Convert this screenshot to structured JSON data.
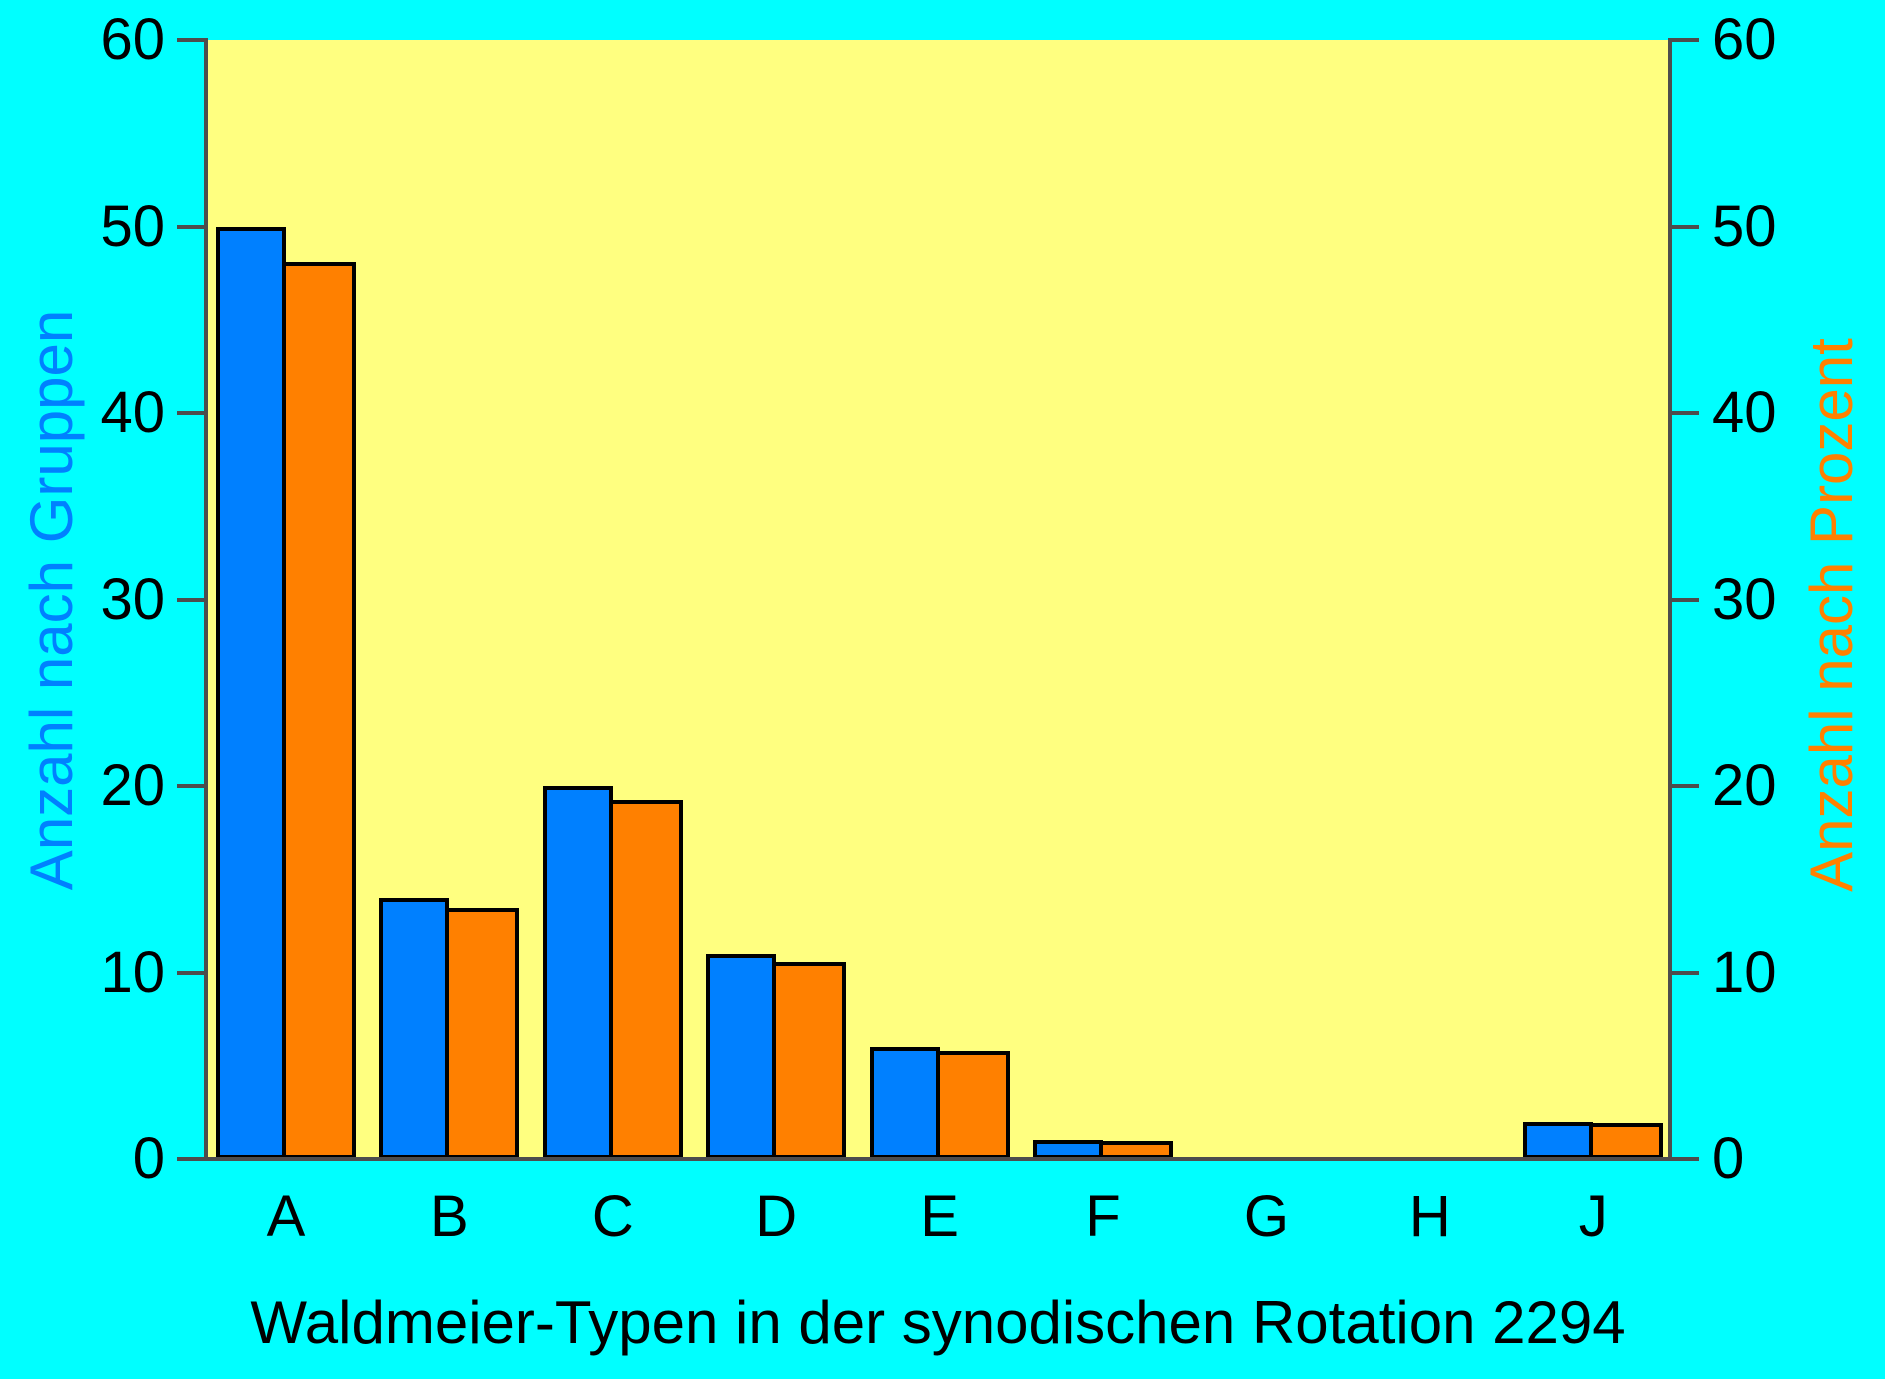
{
  "chart_data": {
    "type": "bar",
    "title": "Waldmeier-Typen in der synodischen Rotation 2294",
    "categories": [
      "A",
      "B",
      "C",
      "D",
      "E",
      "F",
      "G",
      "H",
      "J"
    ],
    "series": [
      {
        "name": "Anzahl nach Gruppen",
        "axis": "left",
        "color": "#0080ff",
        "values": [
          50,
          14,
          20,
          11,
          6,
          1,
          0,
          0,
          2
        ]
      },
      {
        "name": "Anzahl nach Prozent",
        "axis": "right",
        "color": "#ff8000",
        "values": [
          48.08,
          13.46,
          19.23,
          10.58,
          5.77,
          0.96,
          0,
          0,
          1.92
        ]
      }
    ],
    "ylabel_left": "Anzahl nach Gruppen",
    "ylabel_right": "Anzahl nach Prozent",
    "ylim": [
      0,
      60
    ],
    "yticks": [
      0,
      10,
      20,
      30,
      40,
      50,
      60
    ],
    "grid": false,
    "legend_position": "none"
  },
  "colors": {
    "background": "#00ffff",
    "plot_background": "#ffff80",
    "axis": "#4d4d4d",
    "bar_outline": "#000000",
    "series_gruppen": "#0080ff",
    "series_prozent": "#ff8000",
    "text": "#000000"
  }
}
